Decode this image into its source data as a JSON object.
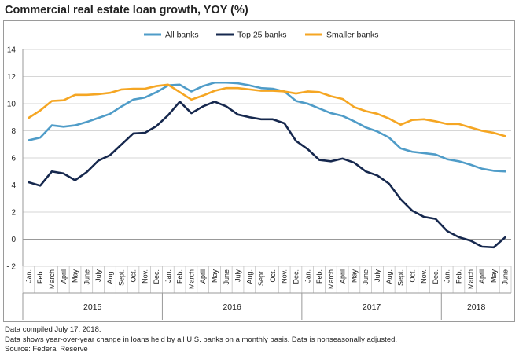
{
  "title": "Commercial real estate loan growth, YOY (%)",
  "footnotes": [
    "Data compiled July 17, 2018.",
    "Data shows year-over-year change in loans held by all U.S. banks on a monthly basis. Data is nonseasonally adjusted.",
    "Source: Federal Reserve"
  ],
  "chart_data": {
    "type": "line",
    "title": "Commercial real estate loan growth, YOY (%)",
    "xlabel": "",
    "ylabel": "",
    "ylim": [
      -2,
      14
    ],
    "yticks": [
      -2,
      0,
      2,
      4,
      6,
      8,
      10,
      12,
      14
    ],
    "grid": true,
    "legend": "top-center",
    "categories": [
      "Jan.",
      "Feb.",
      "March",
      "April",
      "May",
      "June",
      "July",
      "Aug.",
      "Sept.",
      "Oct.",
      "Nov.",
      "Dec.",
      "Jan.",
      "Feb.",
      "March",
      "April",
      "May",
      "June",
      "July",
      "Aug.",
      "Sept.",
      "Oct.",
      "Nov.",
      "Dec.",
      "Jan.",
      "Feb.",
      "March",
      "April",
      "May",
      "June",
      "July",
      "Aug.",
      "Sept.",
      "Oct.",
      "Nov.",
      "Dec.",
      "Jan.",
      "Feb.",
      "March",
      "April",
      "May",
      "June"
    ],
    "years": [
      {
        "label": "2015",
        "start": 0,
        "count": 12
      },
      {
        "label": "2016",
        "start": 12,
        "count": 12
      },
      {
        "label": "2017",
        "start": 24,
        "count": 12
      },
      {
        "label": "2018",
        "start": 36,
        "count": 6
      }
    ],
    "series": [
      {
        "name": "All banks",
        "color": "#4f9cc8",
        "values": [
          7.3,
          7.5,
          8.4,
          8.3,
          8.4,
          8.65,
          8.95,
          9.25,
          9.8,
          10.3,
          10.45,
          10.85,
          11.35,
          11.4,
          10.9,
          11.3,
          11.55,
          11.55,
          11.5,
          11.35,
          11.15,
          11.1,
          10.9,
          10.2,
          10.0,
          9.65,
          9.3,
          9.1,
          8.7,
          8.25,
          7.95,
          7.5,
          6.7,
          6.45,
          6.35,
          6.25,
          5.9,
          5.75,
          5.5,
          5.2,
          5.05,
          5.0
        ]
      },
      {
        "name": "Top 25 banks",
        "color": "#16284e",
        "values": [
          4.2,
          3.95,
          5.0,
          4.85,
          4.35,
          4.95,
          5.8,
          6.2,
          7.0,
          7.8,
          7.85,
          8.35,
          9.15,
          10.15,
          9.3,
          9.8,
          10.15,
          9.8,
          9.2,
          9.0,
          8.85,
          8.85,
          8.55,
          7.25,
          6.65,
          5.85,
          5.75,
          5.95,
          5.65,
          5.0,
          4.7,
          4.1,
          2.95,
          2.1,
          1.65,
          1.5,
          0.6,
          0.15,
          -0.1,
          -0.55,
          -0.6,
          0.15
        ]
      },
      {
        "name": "Smaller banks",
        "color": "#f5a623",
        "values": [
          8.95,
          9.5,
          10.2,
          10.25,
          10.65,
          10.65,
          10.7,
          10.8,
          11.05,
          11.1,
          11.1,
          11.3,
          11.4,
          10.85,
          10.3,
          10.6,
          10.95,
          11.15,
          11.15,
          11.05,
          10.95,
          10.95,
          10.9,
          10.75,
          10.9,
          10.85,
          10.55,
          10.35,
          9.75,
          9.45,
          9.25,
          8.9,
          8.45,
          8.8,
          8.85,
          8.7,
          8.5,
          8.5,
          8.25,
          8.0,
          7.85,
          7.6
        ]
      }
    ]
  }
}
